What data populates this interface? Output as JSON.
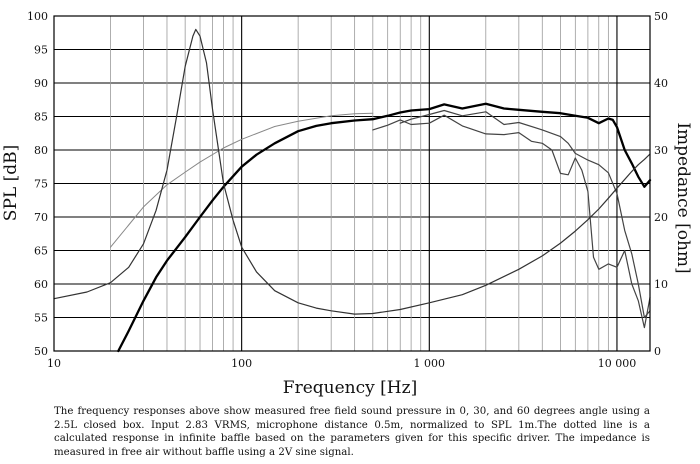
{
  "chart_data": {
    "type": "line",
    "xlabel": "Frequency [Hz]",
    "ylabel": "SPL [dB]",
    "y2label": "Impedance [ohm]",
    "x_scale": "log",
    "xlim": [
      10,
      15000
    ],
    "ylim": [
      50,
      100
    ],
    "y2lim": [
      0,
      50
    ],
    "grid": true,
    "x_tick_labels": [
      "10",
      "100",
      "1 000",
      "10 000"
    ],
    "x_tick_values": [
      10,
      100,
      1000,
      10000
    ],
    "y_tick_labels": [
      "50",
      "55",
      "60",
      "65",
      "70",
      "75",
      "80",
      "85",
      "90",
      "95",
      "100"
    ],
    "y2_tick_labels": [
      "0",
      "10",
      "20",
      "30",
      "40",
      "50"
    ],
    "series": [
      {
        "stroke_width": 2.3,
        "color": "#000000",
        "axis": "left",
        "x": [
          22,
          25,
          30,
          35,
          40,
          50,
          60,
          70,
          80,
          100,
          120,
          150,
          200,
          250,
          300,
          400,
          500,
          600,
          700,
          800,
          1000,
          1200,
          1500,
          2000,
          2500,
          3000,
          4000,
          5000,
          6000,
          7000,
          8000,
          9000,
          9500,
          10000,
          11000,
          12000,
          13000,
          14000,
          15000
        ],
        "values": [
          50,
          53,
          57.5,
          61,
          63.5,
          67,
          70,
          72.5,
          74.5,
          77.5,
          79.3,
          81,
          82.8,
          83.6,
          84,
          84.4,
          84.6,
          85.1,
          85.6,
          85.9,
          86.1,
          86.8,
          86.2,
          86.9,
          86.2,
          86,
          85.7,
          85.5,
          85.1,
          84.8,
          84,
          84.7,
          84.5,
          83.4,
          80,
          78,
          76,
          74.5,
          75.5
        ]
      },
      {
        "stroke_width": 1.2,
        "color": "#444444",
        "axis": "left",
        "x": [
          700,
          800,
          1000,
          1200,
          1500,
          2000,
          2500,
          3000,
          4000,
          5000,
          5500,
          6000,
          7000,
          8000,
          9000,
          10000,
          11000,
          12000,
          13000,
          14000,
          15000
        ],
        "values": [
          84,
          84.6,
          85.3,
          85.9,
          85.1,
          85.7,
          83.8,
          84.1,
          83,
          82,
          81,
          79.5,
          78.5,
          77.8,
          76.6,
          73.5,
          68,
          64.5,
          60,
          55,
          56
        ]
      },
      {
        "stroke_width": 1.2,
        "color": "#444444",
        "axis": "left",
        "x": [
          500,
          600,
          700,
          800,
          1000,
          1200,
          1500,
          2000,
          2500,
          3000,
          3500,
          4000,
          4500,
          5000,
          5500,
          6000,
          6500,
          7000,
          7500,
          8000,
          9000,
          10000,
          11000,
          12000,
          13000,
          14000,
          15000
        ],
        "values": [
          83,
          83.7,
          84.5,
          83.8,
          84,
          85.2,
          83.6,
          82.4,
          82.3,
          82.6,
          81.3,
          81,
          80,
          76.5,
          76.3,
          78.8,
          77,
          73.8,
          64,
          62.2,
          63,
          62.5,
          65,
          60,
          57.5,
          53.5,
          58
        ]
      },
      {
        "stroke_width": 1,
        "color": "#888888",
        "axis": "left",
        "x": [
          20,
          25,
          30,
          40,
          50,
          60,
          80,
          100,
          150,
          200,
          300,
          400,
          500
        ],
        "values": [
          65.5,
          68.8,
          71.5,
          74.8,
          76.7,
          78.2,
          80.3,
          81.6,
          83.5,
          84.3,
          85.1,
          85.4,
          85.5
        ]
      },
      {
        "stroke_width": 1.2,
        "color": "#333333",
        "axis": "right",
        "x": [
          10,
          15,
          20,
          25,
          30,
          35,
          40,
          45,
          50,
          55,
          57,
          60,
          65,
          70,
          80,
          90,
          100,
          120,
          150,
          200,
          250,
          300,
          400,
          500,
          700,
          1000,
          1500,
          2000,
          3000,
          4000,
          5000,
          6000,
          7000,
          8000,
          9000,
          10000,
          12000,
          13000,
          14000,
          15000
        ],
        "values": [
          7.8,
          8.8,
          10.2,
          12.5,
          16,
          21,
          27,
          35,
          42.5,
          47,
          48,
          47,
          43,
          36,
          25,
          19.5,
          15.5,
          11.8,
          9,
          7.2,
          6.4,
          6,
          5.5,
          5.6,
          6.2,
          7.2,
          8.4,
          9.8,
          12.2,
          14.2,
          16.1,
          17.9,
          19.6,
          21.2,
          22.8,
          24.3,
          26.8,
          27.8,
          28.6,
          29.4
        ]
      }
    ]
  },
  "caption": "The frequency responses above show measured free field sound pressure in 0, 30, and 60 degrees angle using a 2.5L closed box. Input 2.83 VRMS, microphone distance 0.5m, normalized to SPL 1m.The dotted line is a calculated response in infinite baffle based on the parameters given for this specific driver. The impedance is measured in free air without baffle using a 2V sine signal."
}
